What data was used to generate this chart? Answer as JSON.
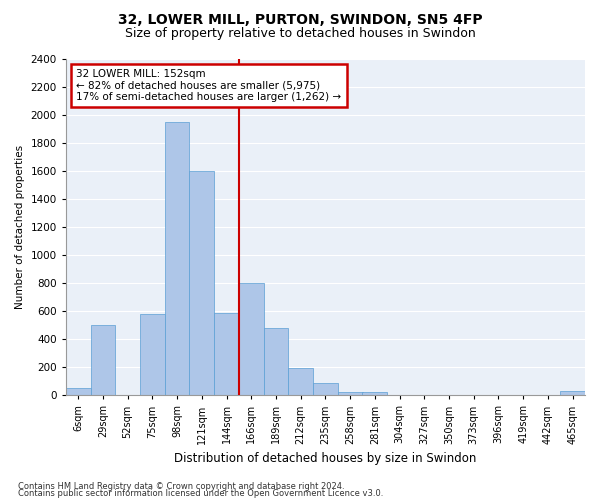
{
  "title1": "32, LOWER MILL, PURTON, SWINDON, SN5 4FP",
  "title2": "Size of property relative to detached houses in Swindon",
  "xlabel": "Distribution of detached houses by size in Swindon",
  "ylabel": "Number of detached properties",
  "footnote1": "Contains HM Land Registry data © Crown copyright and database right 2024.",
  "footnote2": "Contains public sector information licensed under the Open Government Licence v3.0.",
  "bin_labels": [
    "6sqm",
    "29sqm",
    "52sqm",
    "75sqm",
    "98sqm",
    "121sqm",
    "144sqm",
    "166sqm",
    "189sqm",
    "212sqm",
    "235sqm",
    "258sqm",
    "281sqm",
    "304sqm",
    "327sqm",
    "350sqm",
    "373sqm",
    "396sqm",
    "419sqm",
    "442sqm",
    "465sqm"
  ],
  "bar_values": [
    50,
    500,
    0,
    580,
    1950,
    1600,
    590,
    800,
    480,
    195,
    85,
    20,
    20,
    0,
    0,
    0,
    0,
    0,
    0,
    0,
    30
  ],
  "bar_color": "#aec6e8",
  "bar_edgecolor": "#5a9fd4",
  "vline_x": 6.5,
  "vline_color": "#cc0000",
  "annotation_title": "32 LOWER MILL: 152sqm",
  "annotation_line1": "← 82% of detached houses are smaller (5,975)",
  "annotation_line2": "17% of semi-detached houses are larger (1,262) →",
  "annotation_box_color": "#ffffff",
  "annotation_box_edgecolor": "#cc0000",
  "ylim": [
    0,
    2400
  ],
  "yticks": [
    0,
    200,
    400,
    600,
    800,
    1000,
    1200,
    1400,
    1600,
    1800,
    2000,
    2200,
    2400
  ],
  "bg_color": "#eaf0f8",
  "grid_color": "#ffffff",
  "title1_fontsize": 10,
  "title2_fontsize": 9
}
